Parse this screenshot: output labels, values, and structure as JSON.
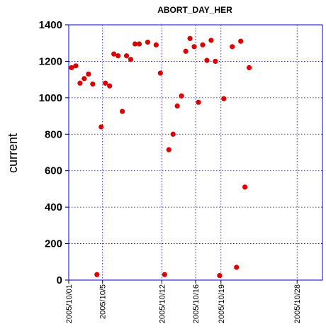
{
  "chart_data": {
    "type": "scatter",
    "title": "ABORT_DAY_HER",
    "xlabel": "",
    "ylabel": "current",
    "ylim": [
      0,
      1400
    ],
    "yticks": [
      0,
      200,
      400,
      600,
      800,
      1000,
      1200,
      1400
    ],
    "xlim": [
      "2005-10-01",
      "2005-10-31"
    ],
    "xticks": [
      "2005/10/01",
      "2005/10/5",
      "2005/10/12",
      "2005/10/16",
      "2005/10/19",
      "2005/10/28"
    ],
    "grid": true,
    "marker_color": "#dd0000",
    "grid_color": "#0000cc",
    "points": [
      {
        "x": "2005-10-01",
        "y": 1165
      },
      {
        "x": "2005-10-01",
        "y": 1175
      },
      {
        "x": "2005-10-02",
        "y": 1080
      },
      {
        "x": "2005-10-02",
        "y": 1105
      },
      {
        "x": "2005-10-03",
        "y": 1130
      },
      {
        "x": "2005-10-03",
        "y": 1075
      },
      {
        "x": "2005-10-04",
        "y": 30
      },
      {
        "x": "2005-10-04",
        "y": 840
      },
      {
        "x": "2005-10-05",
        "y": 1080
      },
      {
        "x": "2005-10-05",
        "y": 1065
      },
      {
        "x": "2005-10-06",
        "y": 1240
      },
      {
        "x": "2005-10-06",
        "y": 1230
      },
      {
        "x": "2005-10-07",
        "y": 925
      },
      {
        "x": "2005-10-07",
        "y": 1230
      },
      {
        "x": "2005-10-08",
        "y": 1210
      },
      {
        "x": "2005-10-08",
        "y": 1295
      },
      {
        "x": "2005-10-09",
        "y": 1295
      },
      {
        "x": "2005-10-10",
        "y": 1305
      },
      {
        "x": "2005-10-11",
        "y": 1290
      },
      {
        "x": "2005-10-11",
        "y": 1135
      },
      {
        "x": "2005-10-12",
        "y": 30
      },
      {
        "x": "2005-10-12",
        "y": 715
      },
      {
        "x": "2005-10-13",
        "y": 800
      },
      {
        "x": "2005-10-13",
        "y": 955
      },
      {
        "x": "2005-10-14",
        "y": 1010
      },
      {
        "x": "2005-10-14",
        "y": 1255
      },
      {
        "x": "2005-10-15",
        "y": 1325
      },
      {
        "x": "2005-10-15",
        "y": 1280
      },
      {
        "x": "2005-10-16",
        "y": 975
      },
      {
        "x": "2005-10-16",
        "y": 1290
      },
      {
        "x": "2005-10-17",
        "y": 1205
      },
      {
        "x": "2005-10-17",
        "y": 1315
      },
      {
        "x": "2005-10-18",
        "y": 1200
      },
      {
        "x": "2005-10-18",
        "y": 25
      },
      {
        "x": "2005-10-19",
        "y": 995
      },
      {
        "x": "2005-10-20",
        "y": 1280
      },
      {
        "x": "2005-10-20",
        "y": 70
      },
      {
        "x": "2005-10-21",
        "y": 1310
      },
      {
        "x": "2005-10-21",
        "y": 510
      },
      {
        "x": "2005-10-22",
        "y": 1165
      }
    ]
  }
}
